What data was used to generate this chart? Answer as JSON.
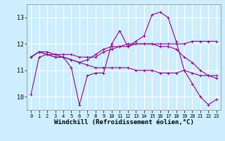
{
  "xlabel": "Windchill (Refroidissement éolien,°C)",
  "ylabel": "",
  "bg_color": "#cceeff",
  "grid_color": "#ffffff",
  "line_color": "#990099",
  "ylim": [
    9.5,
    13.5
  ],
  "xlim": [
    -0.5,
    23.5
  ],
  "yticks": [
    10,
    11,
    12,
    13
  ],
  "xticks": [
    0,
    1,
    2,
    3,
    4,
    5,
    6,
    7,
    8,
    9,
    10,
    11,
    12,
    13,
    14,
    15,
    16,
    17,
    18,
    19,
    20,
    21,
    22,
    23
  ],
  "series": [
    [
      10.1,
      11.5,
      11.6,
      11.6,
      11.5,
      11.1,
      9.7,
      10.8,
      10.9,
      10.9,
      12.0,
      12.5,
      11.9,
      12.1,
      12.3,
      13.1,
      13.2,
      13.0,
      12.1,
      11.0,
      10.5,
      10.0,
      9.7,
      9.9
    ],
    [
      11.5,
      11.7,
      11.7,
      11.6,
      11.6,
      11.6,
      11.5,
      11.5,
      11.5,
      11.7,
      11.8,
      11.9,
      12.0,
      12.0,
      12.0,
      12.0,
      12.0,
      12.0,
      12.0,
      12.0,
      12.1,
      12.1,
      12.1,
      12.1
    ],
    [
      11.5,
      11.7,
      11.6,
      11.5,
      11.5,
      11.4,
      11.3,
      11.2,
      11.1,
      11.1,
      11.1,
      11.1,
      11.1,
      11.0,
      11.0,
      11.0,
      10.9,
      10.9,
      10.9,
      11.0,
      10.9,
      10.8,
      10.8,
      10.8
    ],
    [
      11.5,
      11.7,
      11.6,
      11.5,
      11.5,
      11.4,
      11.3,
      11.4,
      11.6,
      11.8,
      11.9,
      11.9,
      11.9,
      12.0,
      12.0,
      12.0,
      11.9,
      11.9,
      11.8,
      11.5,
      11.3,
      11.0,
      10.8,
      10.7
    ]
  ],
  "marker": "+",
  "markersize": 3,
  "linewidth": 0.8,
  "xlabel_fontsize": 6.5,
  "tick_fontsize": 6,
  "xtick_fontsize": 5
}
